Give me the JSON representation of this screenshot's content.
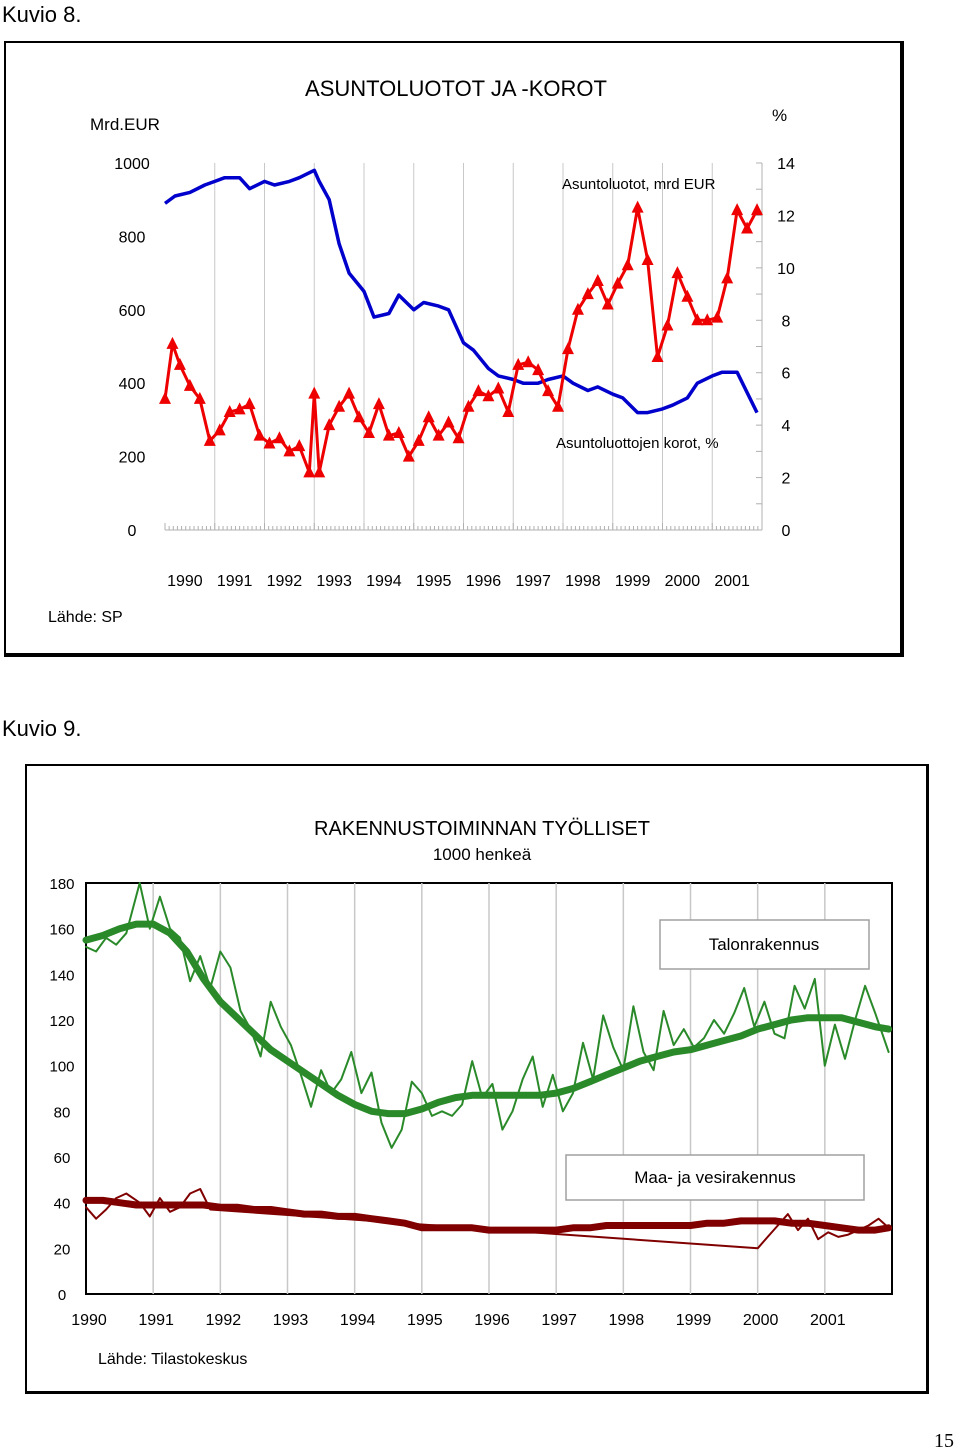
{
  "page": {
    "page_number": "15"
  },
  "figure1": {
    "caption": "Kuvio 8.",
    "source": "Lähde: SP"
  },
  "figure2": {
    "caption": "Kuvio 9.",
    "source": "Lähde: Tilastokeskus"
  },
  "chart_data": [
    {
      "type": "line",
      "title": "ASUNTOLUOTOT JA -KOROT",
      "left_axis_unit": "Mrd.EUR",
      "right_axis_unit": "%",
      "categories": [
        "1990",
        "1991",
        "1992",
        "1993",
        "1994",
        "1995",
        "1996",
        "1997",
        "1998",
        "1999",
        "2000",
        "2001"
      ],
      "ylim_left": [
        0,
        1000
      ],
      "yticks_left": [
        "0",
        "200",
        "400",
        "600",
        "800",
        "1000"
      ],
      "ylim_right": [
        0,
        14
      ],
      "yticks_right": [
        "0",
        "2",
        "4",
        "6",
        "8",
        "10",
        "12",
        "14"
      ],
      "grid": "vertical",
      "series": [
        {
          "name": "Asuntoluotot, mrd EUR",
          "axis": "left",
          "color": "#0000cc",
          "x": [
            1990.0,
            1990.2,
            1990.5,
            1990.8,
            1991.0,
            1991.2,
            1991.5,
            1991.7,
            1992.0,
            1992.2,
            1992.5,
            1992.7,
            1993.0,
            1993.1,
            1993.3,
            1993.5,
            1993.7,
            1994.0,
            1994.2,
            1994.5,
            1994.7,
            1995.0,
            1995.2,
            1995.5,
            1995.7,
            1996.0,
            1996.2,
            1996.5,
            1996.7,
            1997.0,
            1997.2,
            1997.5,
            1997.7,
            1998.0,
            1998.2,
            1998.5,
            1998.7,
            1999.0,
            1999.2,
            1999.5,
            1999.7,
            2000.0,
            2000.2,
            2000.5,
            2000.7,
            2001.0,
            2001.2,
            2001.5,
            2001.9
          ],
          "values": [
            890,
            910,
            920,
            940,
            950,
            960,
            960,
            930,
            950,
            940,
            950,
            960,
            980,
            950,
            900,
            780,
            700,
            650,
            580,
            590,
            640,
            600,
            620,
            610,
            600,
            510,
            490,
            440,
            420,
            410,
            400,
            400,
            410,
            420,
            400,
            380,
            390,
            370,
            360,
            320,
            320,
            330,
            340,
            360,
            400,
            420,
            430,
            430,
            320
          ]
        },
        {
          "name": "Asuntoluottojen korot, %",
          "axis": "right",
          "color": "#ee0000",
          "marker": "triangle",
          "x": [
            1990.0,
            1990.15,
            1990.3,
            1990.5,
            1990.7,
            1990.9,
            1991.1,
            1991.3,
            1991.5,
            1991.7,
            1991.9,
            1992.1,
            1992.3,
            1992.5,
            1992.7,
            1992.9,
            1993.0,
            1993.1,
            1993.3,
            1993.5,
            1993.7,
            1993.9,
            1994.1,
            1994.3,
            1994.5,
            1994.7,
            1994.9,
            1995.1,
            1995.3,
            1995.5,
            1995.7,
            1995.9,
            1996.1,
            1996.3,
            1996.5,
            1996.7,
            1996.9,
            1997.1,
            1997.3,
            1997.5,
            1997.7,
            1997.9,
            1998.1,
            1998.3,
            1998.5,
            1998.7,
            1998.9,
            1999.1,
            1999.3,
            1999.5,
            1999.7,
            1999.9,
            2000.1,
            2000.3,
            2000.5,
            2000.7,
            2000.9,
            2001.1,
            2001.3,
            2001.5,
            2001.7,
            2001.9
          ],
          "values": [
            5.0,
            7.1,
            6.3,
            5.5,
            5.0,
            3.4,
            3.8,
            4.5,
            4.6,
            4.8,
            3.6,
            3.3,
            3.5,
            3.0,
            3.2,
            2.2,
            5.2,
            2.2,
            4.0,
            4.7,
            5.2,
            4.3,
            3.7,
            4.8,
            3.6,
            3.7,
            2.8,
            3.4,
            4.3,
            3.6,
            4.1,
            3.5,
            4.7,
            5.3,
            5.1,
            5.4,
            4.5,
            6.3,
            6.4,
            6.1,
            5.3,
            4.7,
            6.9,
            8.4,
            9.0,
            9.5,
            8.6,
            9.4,
            10.1,
            12.3,
            10.3,
            6.6,
            7.8,
            9.8,
            8.9,
            8.0,
            8.0,
            8.1,
            9.6,
            12.2,
            11.5,
            12.2
          ]
        }
      ]
    },
    {
      "type": "line",
      "title": "RAKENNUSTOIMINNAN TYÖLLISET",
      "subtitle": "1000 henkeä",
      "categories": [
        "1990",
        "1991",
        "1992",
        "1993",
        "1994",
        "1995",
        "1996",
        "1997",
        "1998",
        "1999",
        "2000",
        "2001"
      ],
      "ylim": [
        0,
        180
      ],
      "yticks": [
        "0",
        "20",
        "40",
        "60",
        "80",
        "100",
        "120",
        "140",
        "160",
        "180"
      ],
      "grid": "vertical",
      "series": [
        {
          "name": "Talonrakennus",
          "style": "trend",
          "color": "#2a8a2a",
          "x": [
            1990.0,
            1990.25,
            1990.5,
            1990.75,
            1991.0,
            1991.25,
            1991.5,
            1991.75,
            1992.0,
            1992.25,
            1992.5,
            1992.75,
            1993.0,
            1993.25,
            1993.5,
            1993.75,
            1994.0,
            1994.25,
            1994.5,
            1994.75,
            1995.0,
            1995.25,
            1995.5,
            1995.75,
            1996.0,
            1996.25,
            1996.5,
            1996.75,
            1997.0,
            1997.25,
            1997.5,
            1997.75,
            1998.0,
            1998.25,
            1998.5,
            1998.75,
            1999.0,
            1999.25,
            1999.5,
            1999.75,
            2000.0,
            2000.25,
            2000.5,
            2000.75,
            2001.0,
            2001.25,
            2001.5,
            2001.75,
            2001.95
          ],
          "values": [
            155,
            157,
            160,
            162,
            162,
            158,
            150,
            138,
            128,
            121,
            114,
            107,
            102,
            97,
            92,
            87,
            83,
            80,
            79,
            79,
            81,
            84,
            86,
            87,
            87,
            87,
            87,
            87,
            88,
            90,
            93,
            96,
            99,
            102,
            104,
            106,
            107,
            109,
            111,
            113,
            116,
            118,
            120,
            121,
            121,
            121,
            119,
            117,
            116
          ]
        },
        {
          "name": "Talonrakennus (raw)",
          "style": "raw",
          "color": "#2a8a2a",
          "x": [
            1990.0,
            1990.15,
            1990.3,
            1990.45,
            1990.6,
            1990.8,
            1990.95,
            1991.1,
            1991.25,
            1991.4,
            1991.55,
            1991.7,
            1991.85,
            1992.0,
            1992.15,
            1992.3,
            1992.45,
            1992.6,
            1992.75,
            1992.9,
            1993.05,
            1993.2,
            1993.35,
            1993.5,
            1993.65,
            1993.8,
            1993.95,
            1994.1,
            1994.25,
            1994.4,
            1994.55,
            1994.7,
            1994.85,
            1995.0,
            1995.15,
            1995.3,
            1995.45,
            1995.6,
            1995.75,
            1995.9,
            1996.05,
            1996.2,
            1996.35,
            1996.5,
            1996.65,
            1996.8,
            1996.95,
            1997.1,
            1997.25,
            1997.4,
            1997.55,
            1997.7,
            1997.85,
            1998.0,
            1998.15,
            1998.3,
            1998.45,
            1998.6,
            1998.75,
            1998.9,
            1999.05,
            1999.2,
            1999.35,
            1999.5,
            1999.65,
            1999.8,
            1999.95,
            2000.1,
            2000.25,
            2000.4,
            2000.55,
            2000.7,
            2000.85,
            2001.0,
            2001.15,
            2001.3,
            2001.45,
            2001.6,
            2001.75,
            2001.95
          ],
          "values": [
            152,
            150,
            156,
            153,
            158,
            180,
            160,
            174,
            160,
            156,
            137,
            148,
            134,
            150,
            143,
            124,
            116,
            104,
            128,
            117,
            109,
            96,
            82,
            98,
            88,
            94,
            106,
            88,
            97,
            75,
            64,
            72,
            93,
            88,
            78,
            80,
            78,
            83,
            102,
            86,
            92,
            72,
            80,
            94,
            104,
            82,
            96,
            80,
            88,
            110,
            94,
            122,
            108,
            98,
            126,
            106,
            98,
            124,
            109,
            116,
            108,
            112,
            120,
            114,
            123,
            134,
            117,
            128,
            114,
            112,
            135,
            125,
            138,
            100,
            118,
            103,
            120,
            135,
            123,
            106
          ]
        },
        {
          "name": "Maa- ja vesirakennus",
          "style": "trend",
          "color": "#800000",
          "x": [
            1990.0,
            1990.25,
            1990.5,
            1990.75,
            1991.0,
            1991.25,
            1991.5,
            1991.75,
            1992.0,
            1992.25,
            1992.5,
            1992.75,
            1993.0,
            1993.25,
            1993.5,
            1993.75,
            1994.0,
            1994.25,
            1994.5,
            1994.75,
            1995.0,
            1995.25,
            1995.5,
            1995.75,
            1996.0,
            1996.25,
            1996.5,
            1996.75,
            1997.0,
            1997.25,
            1997.5,
            1997.75,
            1998.0,
            1998.25,
            1998.5,
            1998.75,
            1999.0,
            1999.25,
            1999.5,
            1999.75,
            2000.0,
            2000.25,
            2000.5,
            2000.75,
            2001.0,
            2001.25,
            2001.5,
            2001.75,
            2001.95
          ],
          "values": [
            41,
            41,
            40,
            39,
            39,
            39,
            39,
            39,
            38,
            38,
            37,
            37,
            36,
            35,
            35,
            34,
            34,
            33,
            32,
            31,
            29,
            29,
            29,
            29,
            28,
            28,
            28,
            28,
            28,
            29,
            29,
            30,
            30,
            30,
            30,
            30,
            30,
            31,
            31,
            32,
            32,
            32,
            31,
            31,
            30,
            29,
            28,
            28,
            29
          ]
        },
        {
          "name": "Maa- ja vesirakennus (raw)",
          "style": "raw",
          "color": "#800000",
          "x": [
            1990.0,
            1990.15,
            1990.3,
            1990.45,
            1990.6,
            1990.8,
            1990.95,
            1991.1,
            1991.25,
            1991.4,
            1991.55,
            1991.7,
            1991.85,
            2000.0,
            2000.15,
            2000.3,
            2000.45,
            2000.6,
            2000.75,
            2000.9,
            2001.05,
            2001.2,
            2001.35,
            2001.5,
            2001.65,
            2001.8,
            2001.95
          ],
          "values": [
            38,
            33,
            37,
            42,
            44,
            40,
            34,
            42,
            36,
            38,
            44,
            46,
            37,
            20,
            25,
            30,
            35,
            28,
            33,
            24,
            27,
            25,
            26,
            28,
            30,
            33,
            29
          ]
        }
      ]
    }
  ]
}
